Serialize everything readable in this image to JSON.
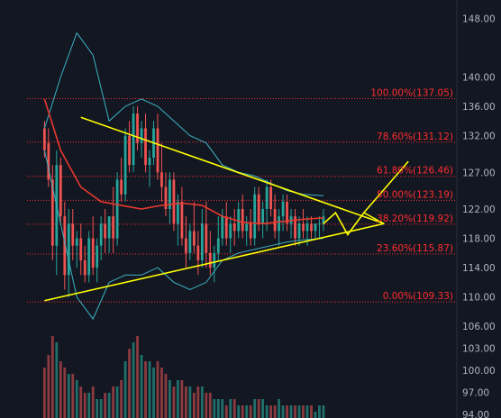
{
  "chart_data": {
    "type": "candlestick",
    "title": "",
    "xlabel": "",
    "ylabel": "",
    "y_axis_side": "right",
    "ylim": [
      93.5,
      150.5
    ],
    "y_ticks": [
      "148.00",
      "140.00",
      "136.00",
      "132.00",
      "127.00",
      "122.00",
      "118.00",
      "114.00",
      "110.00",
      "106.00",
      "103.00",
      "100.00",
      "97.00",
      "94.00"
    ],
    "y_tick_values": [
      148,
      140,
      136,
      132,
      127,
      122,
      118,
      114,
      110,
      106,
      103,
      100,
      97,
      94
    ],
    "grid": false,
    "fibonacci": [
      {
        "label": "100.00%(137.05)",
        "price": 137.05
      },
      {
        "label": "78.60%(131.12)",
        "price": 131.12
      },
      {
        "label": "61.80%(126.46)",
        "price": 126.46
      },
      {
        "label": "50.00%(123.19)",
        "price": 123.19
      },
      {
        "label": "38.20%(119.92)",
        "price": 119.92
      },
      {
        "label": "23.60%(115.87)",
        "price": 115.87
      },
      {
        "label": "0.00%(109.33)",
        "price": 109.33
      }
    ],
    "colors": {
      "background": "#131722",
      "up": "#26a69a",
      "down": "#ef5350",
      "volume_up": "#1f6f6a",
      "volume_down": "#8c3a3f",
      "fib": "#ff2d2d",
      "trend": "#ffff00",
      "bollinger": "#3bb3c3",
      "ma": "#e8382f",
      "axis_text": "#b2b5be"
    },
    "candles": [
      [
        133,
        134,
        129,
        130
      ],
      [
        131,
        133,
        125,
        126
      ],
      [
        126,
        128,
        115,
        117
      ],
      [
        117,
        130,
        113,
        128
      ],
      [
        128,
        129,
        120,
        121
      ],
      [
        121,
        123,
        111,
        113
      ],
      [
        113,
        122,
        110,
        120
      ],
      [
        120,
        122,
        115,
        117
      ],
      [
        117,
        119,
        114,
        118
      ],
      [
        118,
        120,
        113,
        115
      ],
      [
        115,
        117,
        112,
        113
      ],
      [
        113,
        119,
        112,
        118
      ],
      [
        118,
        121,
        113,
        114
      ],
      [
        114,
        118,
        112,
        117
      ],
      [
        117,
        121,
        115,
        120
      ],
      [
        120,
        122,
        116,
        118
      ],
      [
        118,
        121,
        116,
        121
      ],
      [
        121,
        125,
        116,
        118
      ],
      [
        118,
        127,
        117,
        126
      ],
      [
        126,
        129,
        123,
        124
      ],
      [
        124,
        133,
        123,
        132
      ],
      [
        132,
        134,
        127,
        128
      ],
      [
        128,
        136,
        127,
        135
      ],
      [
        135,
        136,
        130,
        131
      ],
      [
        131,
        134,
        129,
        133
      ],
      [
        133,
        135,
        127,
        128
      ],
      [
        128,
        130,
        125,
        129
      ],
      [
        129,
        134,
        128,
        133
      ],
      [
        133,
        135,
        126,
        127
      ],
      [
        127,
        131,
        123,
        125
      ],
      [
        125,
        127,
        121,
        122
      ],
      [
        122,
        127,
        120,
        126
      ],
      [
        126,
        127,
        119,
        120
      ],
      [
        120,
        124,
        117,
        123
      ],
      [
        123,
        125,
        117,
        118
      ],
      [
        118,
        121,
        114,
        116
      ],
      [
        116,
        120,
        115,
        119
      ],
      [
        119,
        123,
        116,
        117
      ],
      [
        117,
        119,
        113,
        115
      ],
      [
        115,
        122,
        114,
        120
      ],
      [
        120,
        123,
        114,
        116
      ],
      [
        116,
        119,
        113,
        114
      ],
      [
        114,
        117,
        112,
        116
      ],
      [
        116,
        121,
        115,
        118
      ],
      [
        118,
        122,
        117,
        121
      ],
      [
        121,
        123,
        117,
        118
      ],
      [
        118,
        121,
        116,
        120
      ],
      [
        120,
        122,
        117,
        119
      ],
      [
        119,
        123,
        118,
        122
      ],
      [
        122,
        124,
        118,
        119
      ],
      [
        119,
        121,
        117,
        120
      ],
      [
        120,
        122,
        117,
        118
      ],
      [
        118,
        125,
        117,
        124
      ],
      [
        124,
        125,
        119,
        120
      ],
      [
        120,
        123,
        118,
        122
      ],
      [
        122,
        126,
        119,
        125
      ],
      [
        125,
        126,
        121,
        122
      ],
      [
        122,
        124,
        118,
        119
      ],
      [
        119,
        122,
        117,
        121
      ],
      [
        121,
        124,
        119,
        123
      ],
      [
        123,
        124,
        119,
        120
      ],
      [
        120,
        122,
        118,
        121
      ],
      [
        121,
        122,
        117,
        118
      ],
      [
        118,
        121,
        117,
        120
      ],
      [
        120,
        122,
        118,
        119
      ],
      [
        119,
        121,
        117,
        120
      ],
      [
        120,
        121,
        118,
        119
      ],
      [
        119,
        120,
        118,
        120
      ],
      [
        120,
        121,
        118,
        120
      ],
      [
        120,
        122,
        119,
        121
      ]
    ],
    "volume": [
      8,
      10,
      13,
      12,
      9,
      8,
      7,
      7,
      6,
      5,
      4,
      4,
      5,
      3,
      3,
      4,
      4,
      5,
      5,
      6,
      9,
      11,
      12,
      13,
      10,
      9,
      9,
      8,
      9,
      8,
      7,
      6,
      5,
      6,
      6,
      5,
      5,
      4,
      5,
      5,
      4,
      4,
      3,
      3,
      3,
      2,
      3,
      3,
      2,
      2,
      2,
      2,
      3,
      3,
      3,
      2,
      2,
      2,
      3,
      2,
      2,
      2,
      2,
      2,
      2,
      2,
      2,
      1,
      2,
      2
    ],
    "ma": [
      [
        0,
        137.0
      ],
      [
        4,
        130.0
      ],
      [
        9,
        125.0
      ],
      [
        14,
        123.0
      ],
      [
        19,
        122.5
      ],
      [
        24,
        122.0
      ],
      [
        29,
        122.5
      ],
      [
        34,
        122.8
      ],
      [
        39,
        122.5
      ],
      [
        44,
        121.0
      ],
      [
        49,
        120.2
      ],
      [
        54,
        120.0
      ],
      [
        59,
        120.3
      ],
      [
        64,
        120.6
      ],
      [
        69,
        120.8
      ]
    ],
    "bb_upper": [
      [
        0,
        133.0
      ],
      [
        4,
        140.0
      ],
      [
        8,
        146.0
      ],
      [
        12,
        143.0
      ],
      [
        16,
        134.0
      ],
      [
        20,
        136.0
      ],
      [
        24,
        137.0
      ],
      [
        28,
        136.0
      ],
      [
        32,
        134.0
      ],
      [
        36,
        132.0
      ],
      [
        40,
        131.0
      ],
      [
        44,
        128.0
      ],
      [
        48,
        127.0
      ],
      [
        52,
        126.5
      ],
      [
        56,
        125.5
      ],
      [
        60,
        124.5
      ],
      [
        64,
        124.0
      ],
      [
        69,
        123.8
      ]
    ],
    "bb_lower": [
      [
        0,
        130.0
      ],
      [
        4,
        120.0
      ],
      [
        8,
        110.0
      ],
      [
        12,
        107.0
      ],
      [
        16,
        112.0
      ],
      [
        20,
        113.0
      ],
      [
        24,
        113.0
      ],
      [
        28,
        114.0
      ],
      [
        32,
        112.0
      ],
      [
        36,
        111.0
      ],
      [
        40,
        112.0
      ],
      [
        44,
        115.0
      ],
      [
        48,
        116.0
      ],
      [
        52,
        116.5
      ],
      [
        56,
        117.0
      ],
      [
        60,
        117.5
      ],
      [
        64,
        117.8
      ],
      [
        69,
        118.0
      ]
    ],
    "trendlines": [
      {
        "from": [
          9,
          134.5
        ],
        "to": [
          84,
          120.0
        ]
      },
      {
        "from": [
          0,
          109.5
        ],
        "to": [
          84,
          120.0
        ]
      }
    ],
    "projection": [
      [
        69,
        120.0
      ],
      [
        72,
        121.5
      ],
      [
        75,
        118.5
      ],
      [
        79,
        121.5
      ],
      [
        84,
        120.0
      ]
    ],
    "breakout": [
      [
        79,
        121.5
      ],
      [
        90,
        128.5
      ]
    ],
    "x_range": [
      -11,
      102
    ]
  }
}
